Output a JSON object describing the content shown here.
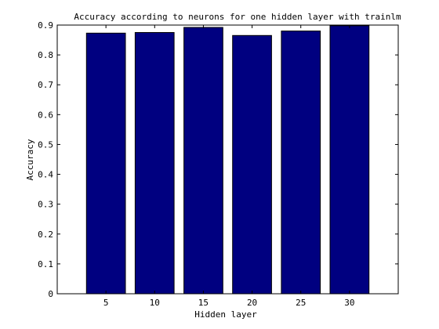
{
  "chart_data": {
    "type": "bar",
    "title": "Accuracy according to neurons for one hidden layer with trainlm",
    "xlabel": "Hidden layer",
    "ylabel": "Accuracy",
    "categories": [
      "5",
      "10",
      "15",
      "20",
      "25",
      "30"
    ],
    "values": [
      0.873,
      0.875,
      0.892,
      0.865,
      0.88,
      0.898
    ],
    "ylim": [
      0,
      0.9
    ],
    "yticks": [
      "0",
      "0.1",
      "0.2",
      "0.3",
      "0.4",
      "0.5",
      "0.6",
      "0.7",
      "0.8",
      "0.9"
    ],
    "bar_color": "#000080",
    "grid": false,
    "legend": "none"
  }
}
